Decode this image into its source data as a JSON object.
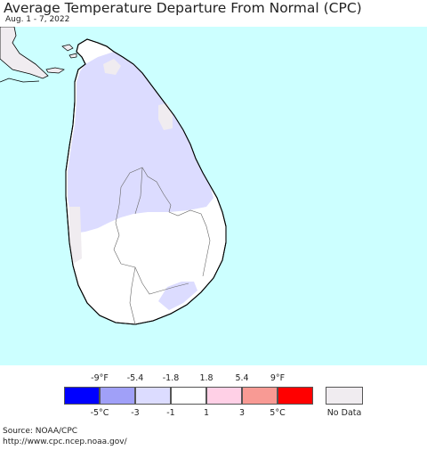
{
  "header": {
    "title": "Average Temperature Departure From Normal (CPC)",
    "subtitle": "Aug. 1 - 7, 2022"
  },
  "map": {
    "region": "Sri Lanka",
    "ocean_color": "#ccffff",
    "land_color": "#ffffff",
    "border_color": "#000000",
    "regions": [
      {
        "category": "-1 to -3 °C",
        "color": "#dcdcff",
        "area": "north and central"
      },
      {
        "category": "-1 to 1 °C",
        "color": "#ffffff",
        "area": "south"
      },
      {
        "category": "No Data",
        "color": "#f0ecf0",
        "area": "coastal slivers"
      }
    ]
  },
  "legend": {
    "fahrenheit_labels": [
      "-9°F",
      "-5.4",
      "-1.8",
      "1.8",
      "5.4",
      "9°F"
    ],
    "celsius_labels": [
      "-5°C",
      "-3",
      "-1",
      "1",
      "3",
      "5°C"
    ],
    "bins": [
      {
        "color": "#0000ff"
      },
      {
        "color": "#a0a0f8"
      },
      {
        "color": "#dcdcff"
      },
      {
        "color": "#ffffff"
      },
      {
        "color": "#ffd0e6"
      },
      {
        "color": "#f89a94"
      },
      {
        "color": "#ff0000"
      }
    ],
    "no_data": {
      "label": "No Data",
      "color": "#f0ecf0"
    }
  },
  "footer": {
    "source": "Source: NOAA/CPC",
    "url": "http://www.cpc.ncep.noaa.gov/"
  }
}
